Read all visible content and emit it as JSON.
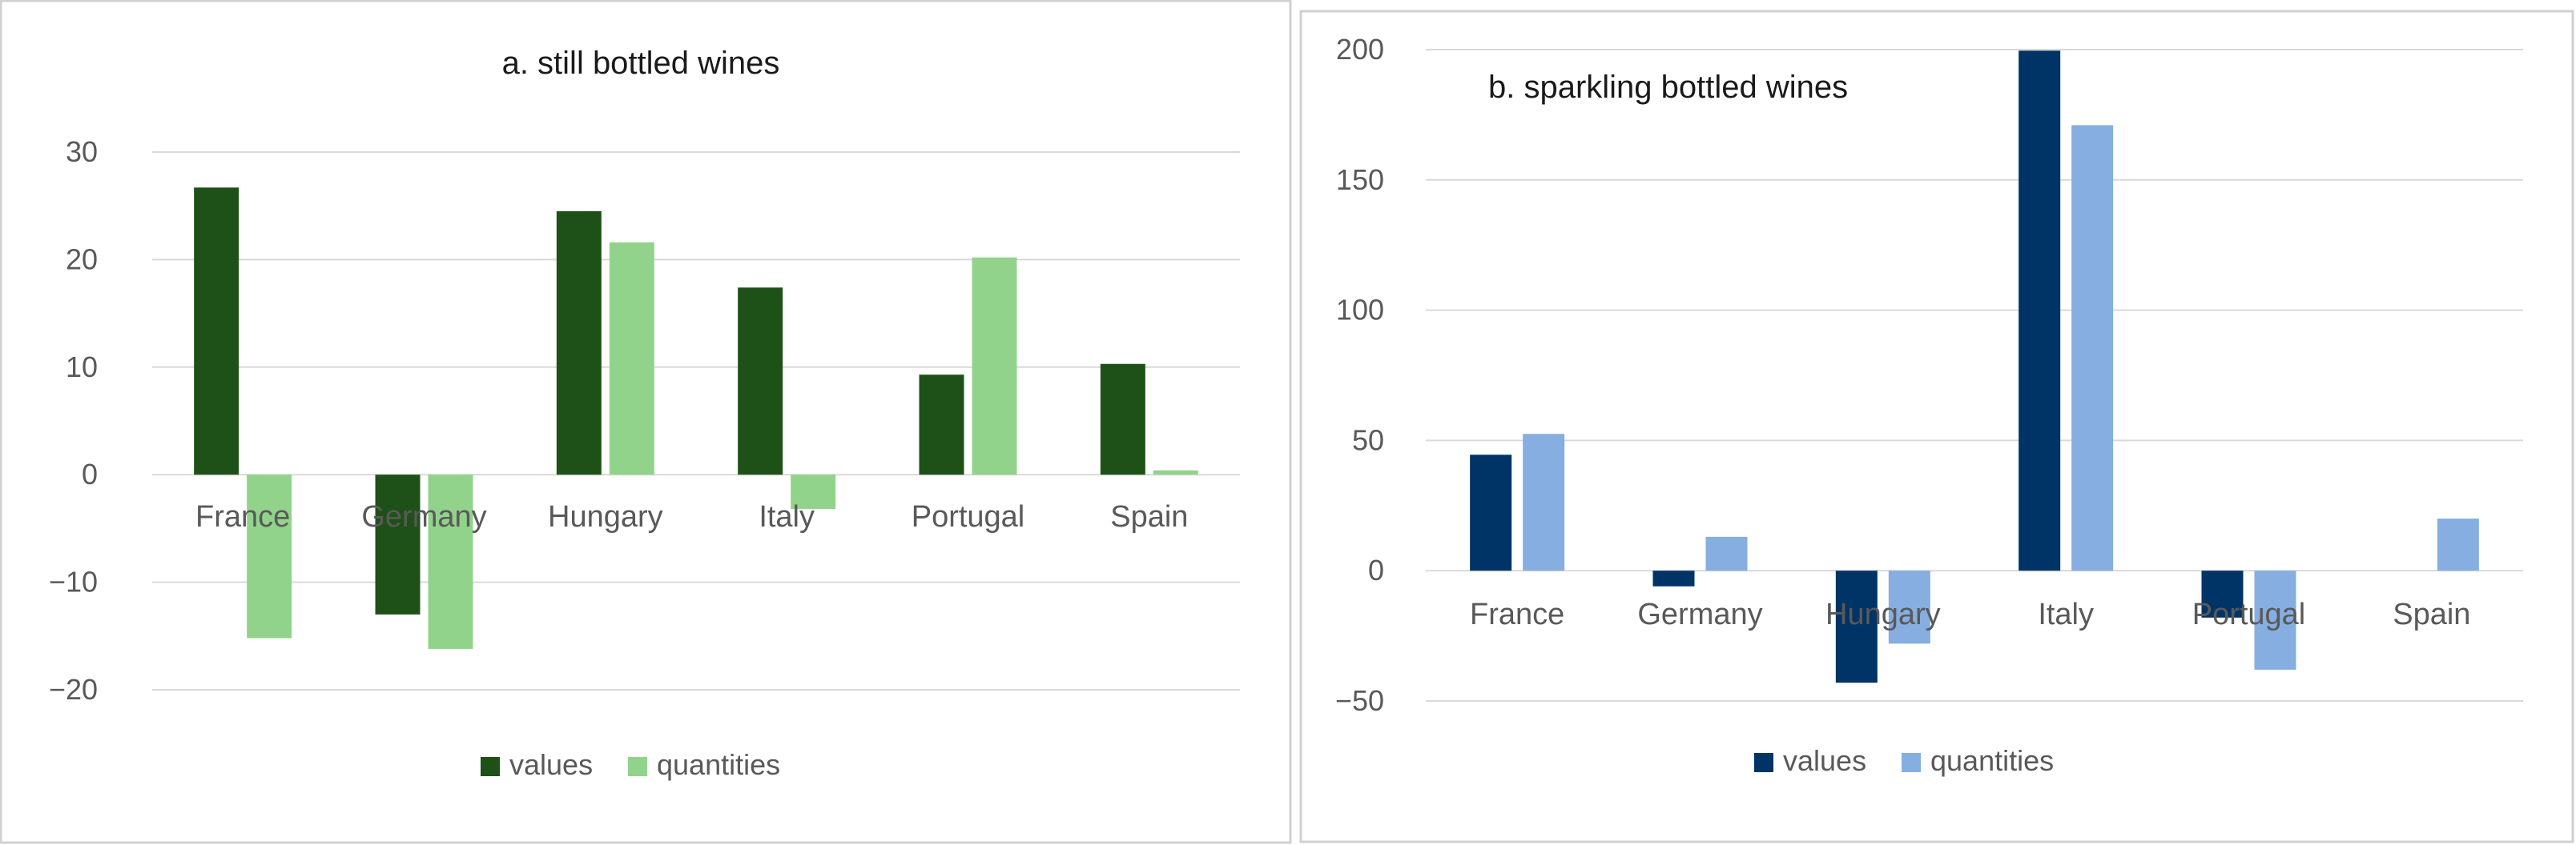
{
  "chart_data": [
    {
      "type": "bar",
      "title": "a. still bottled wines",
      "xlabel": "",
      "ylabel": "",
      "categories": [
        "France",
        "Germany",
        "Hungary",
        "Italy",
        "Portugal",
        "Spain"
      ],
      "series": [
        {
          "name": "values",
          "color": "#1e5117",
          "values": [
            26.7,
            -13.0,
            24.5,
            17.4,
            9.3,
            10.3
          ]
        },
        {
          "name": "quantities",
          "color": "#92d38b",
          "values": [
            -15.2,
            -16.2,
            21.6,
            -3.2,
            20.2,
            0.4
          ]
        }
      ],
      "ylim": [
        -20,
        30
      ],
      "yticks": [
        30,
        20,
        10,
        0,
        -10,
        -20
      ],
      "ytick_labels": [
        "30",
        "20",
        "10",
        "0",
        "−10",
        "−20"
      ],
      "grid": true,
      "legend": "bottom"
    },
    {
      "type": "bar",
      "title": "b. sparkling bottled wines",
      "xlabel": "",
      "ylabel": "",
      "categories": [
        "France",
        "Germany",
        "Hungary",
        "Italy",
        "Portugal",
        "Spain"
      ],
      "series": [
        {
          "name": "values",
          "color": "#003466",
          "values": [
            44.5,
            -6.0,
            -43.0,
            199.6,
            -18.0,
            0
          ]
        },
        {
          "name": "quantities",
          "color": "#86aee0",
          "values": [
            52.5,
            13.0,
            -28.0,
            171.0,
            -38.0,
            20.0
          ]
        }
      ],
      "ylim": [
        -50,
        200
      ],
      "yticks": [
        200,
        150,
        100,
        50,
        0,
        -50
      ],
      "ytick_labels": [
        "200",
        "150",
        "100",
        "50",
        "0",
        "−50"
      ],
      "grid": true,
      "legend": "bottom"
    }
  ]
}
